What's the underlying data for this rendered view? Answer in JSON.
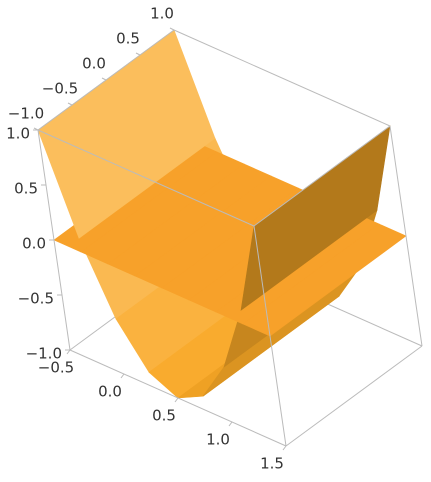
{
  "chart_data": {
    "type": "surface3d",
    "x": [
      -0.5,
      -0.25,
      0,
      0.25,
      0.5,
      0.75,
      1,
      1.25,
      1.5
    ],
    "series": [
      {
        "color": "#f9a825",
        "values": [
          1,
          0.125,
          -0.5,
          -0.875,
          -1,
          -0.875,
          -0.5,
          0.125,
          1
        ]
      },
      {
        "color": "#f7a12a",
        "values": [
          0,
          0,
          0,
          0,
          0,
          0,
          0,
          0,
          0
        ]
      }
    ],
    "xlim": [
      -0.5,
      1.5
    ],
    "ylim": [
      -1,
      1
    ],
    "zlim": [
      -1,
      1
    ],
    "xticks": [
      {
        "value": -0.5,
        "label": "−0.5"
      },
      {
        "value": 0,
        "label": "0.0"
      },
      {
        "value": 0.5,
        "label": "0.5"
      },
      {
        "value": 1,
        "label": "1.0"
      },
      {
        "value": 1.5,
        "label": "1.5"
      }
    ],
    "yticks": [
      {
        "value": -1,
        "label": "−1.0"
      },
      {
        "value": -0.5,
        "label": "−0.5"
      },
      {
        "value": 0,
        "label": "0.0"
      },
      {
        "value": 0.5,
        "label": "0.5"
      },
      {
        "value": 1,
        "label": "1.0"
      }
    ],
    "zticks": [
      {
        "value": -1,
        "label": "−1.0"
      },
      {
        "value": -0.5,
        "label": "−0.5"
      },
      {
        "value": 0,
        "label": "0.0"
      },
      {
        "value": 0.5,
        "label": "0.5"
      },
      {
        "value": 1,
        "label": "1.0"
      }
    ]
  }
}
